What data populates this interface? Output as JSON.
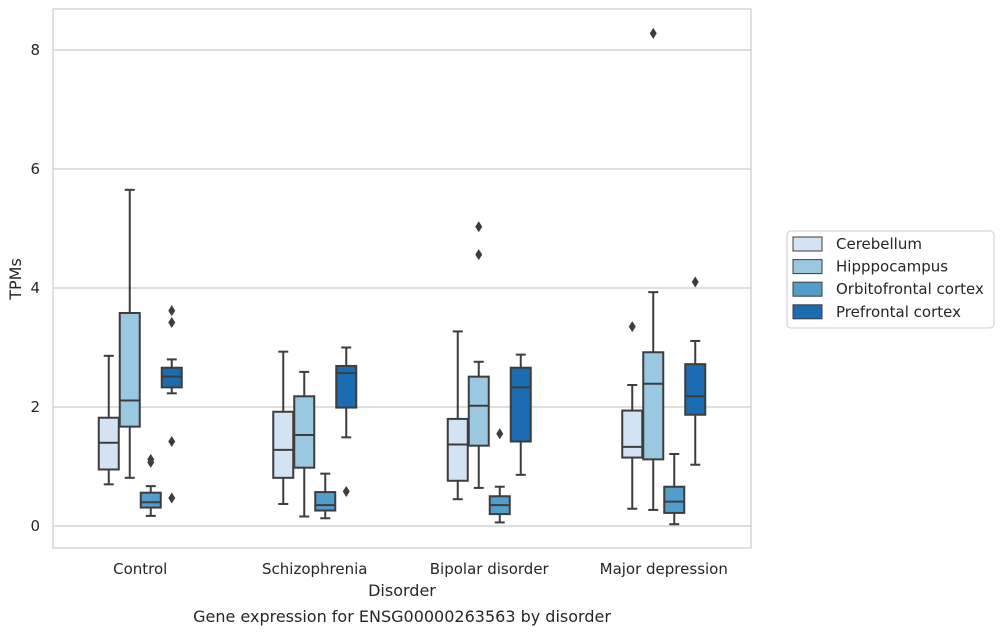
{
  "chart_data": {
    "type": "box",
    "caption": "Gene expression for ENSG00000263563 by disorder",
    "xlabel": "Disorder",
    "ylabel": "TPMs",
    "ylim": [
      -0.35,
      8.7
    ],
    "yticks": [
      0,
      2,
      4,
      6,
      8
    ],
    "grid": "horizontal",
    "legend": "right",
    "categories": [
      "Control",
      "Schizophrenia",
      "Bipolar disorder",
      "Major depression"
    ],
    "series": [
      {
        "name": "Cerebellum",
        "color": "#d3e3f3",
        "boxes": [
          {
            "whislo": 0.7,
            "q1": 0.95,
            "med": 1.4,
            "q3": 1.82,
            "whishi": 2.86,
            "fliers": []
          },
          {
            "whislo": 0.37,
            "q1": 0.81,
            "med": 1.28,
            "q3": 1.92,
            "whishi": 2.93,
            "fliers": []
          },
          {
            "whislo": 0.45,
            "q1": 0.76,
            "med": 1.37,
            "q3": 1.8,
            "whishi": 3.27,
            "fliers": []
          },
          {
            "whislo": 0.29,
            "q1": 1.15,
            "med": 1.33,
            "q3": 1.94,
            "whishi": 2.37,
            "fliers": [
              3.35
            ]
          }
        ]
      },
      {
        "name": "Hipppocampus",
        "color": "#9ac8e0",
        "boxes": [
          {
            "whislo": 0.81,
            "q1": 1.67,
            "med": 2.11,
            "q3": 3.58,
            "whishi": 5.65,
            "fliers": []
          },
          {
            "whislo": 0.16,
            "q1": 0.98,
            "med": 1.53,
            "q3": 2.18,
            "whishi": 2.59,
            "fliers": []
          },
          {
            "whislo": 0.64,
            "q1": 1.35,
            "med": 2.02,
            "q3": 2.51,
            "whishi": 2.76,
            "fliers": [
              4.56,
              5.03
            ]
          },
          {
            "whislo": 0.27,
            "q1": 1.12,
            "med": 2.39,
            "q3": 2.92,
            "whishi": 3.93,
            "fliers": [
              8.28
            ]
          }
        ]
      },
      {
        "name": "Orbitofrontal cortex",
        "color": "#529dcc",
        "boxes": [
          {
            "whislo": 0.17,
            "q1": 0.31,
            "med": 0.4,
            "q3": 0.56,
            "whishi": 0.67,
            "fliers": [
              1.07,
              1.12
            ]
          },
          {
            "whislo": 0.13,
            "q1": 0.26,
            "med": 0.35,
            "q3": 0.57,
            "whishi": 0.88,
            "fliers": []
          },
          {
            "whislo": 0.06,
            "q1": 0.2,
            "med": 0.35,
            "q3": 0.5,
            "whishi": 0.66,
            "fliers": [
              1.55
            ]
          },
          {
            "whislo": 0.03,
            "q1": 0.22,
            "med": 0.41,
            "q3": 0.66,
            "whishi": 1.21,
            "fliers": []
          }
        ]
      },
      {
        "name": "Prefrontal cortex",
        "color": "#1c6cb1",
        "boxes": [
          {
            "whislo": 2.23,
            "q1": 2.33,
            "med": 2.51,
            "q3": 2.66,
            "whishi": 2.8,
            "fliers": [
              0.47,
              1.42,
              3.42,
              3.62
            ]
          },
          {
            "whislo": 1.49,
            "q1": 1.99,
            "med": 2.57,
            "q3": 2.69,
            "whishi": 3.0,
            "fliers": [
              0.58
            ]
          },
          {
            "whislo": 0.86,
            "q1": 1.42,
            "med": 2.33,
            "q3": 2.66,
            "whishi": 2.88,
            "fliers": []
          },
          {
            "whislo": 1.03,
            "q1": 1.87,
            "med": 2.18,
            "q3": 2.72,
            "whishi": 3.11,
            "fliers": [
              4.1
            ]
          }
        ]
      }
    ]
  }
}
